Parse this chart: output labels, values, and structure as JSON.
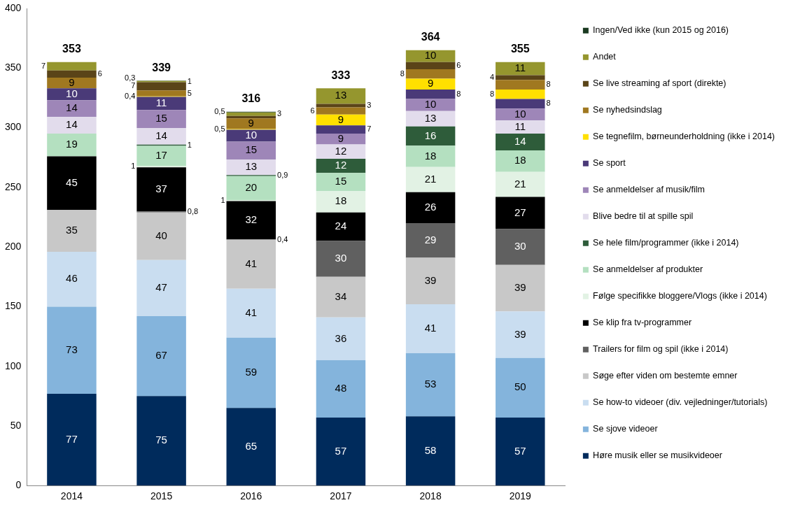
{
  "chart_data": {
    "type": "bar",
    "stacked": true,
    "categories": [
      "2014",
      "2015",
      "2016",
      "2017",
      "2018",
      "2019"
    ],
    "ylim": [
      0,
      400
    ],
    "yticks": [
      0,
      50,
      100,
      150,
      200,
      250,
      300,
      350,
      400
    ],
    "grid": false,
    "legend": "right",
    "totals": [
      "353",
      "339",
      "316",
      "333",
      "364",
      "355"
    ],
    "series": [
      {
        "name": "Høre musik eller se musikvideoer",
        "color": "#002b5c",
        "values": [
          77,
          75,
          65,
          57,
          58,
          57
        ],
        "value_labels": [
          "77",
          "75",
          "65",
          "57",
          "58",
          "57"
        ]
      },
      {
        "name": "Se sjove videoer",
        "color": "#84b4dc",
        "values": [
          73,
          67,
          59,
          48,
          53,
          50
        ],
        "value_labels": [
          "73",
          "67",
          "59",
          "48",
          "53",
          "50"
        ]
      },
      {
        "name": "Se how-to videoer (div. vejledninger/tutorials)",
        "color": "#c9ddf0",
        "values": [
          46,
          47,
          41,
          36,
          41,
          39
        ],
        "value_labels": [
          "46",
          "47",
          "41",
          "36",
          "41",
          "39"
        ]
      },
      {
        "name": "Søge efter viden om bestemte emner",
        "color": "#c8c8c8",
        "values": [
          35,
          40,
          41,
          34,
          39,
          39
        ],
        "value_labels": [
          "35",
          "40",
          "41",
          "34",
          "39",
          "39"
        ]
      },
      {
        "name": "Trailers for film og spil (ikke i 2014)",
        "color": "#606060",
        "values": [
          null,
          0.8,
          0.4,
          30,
          29,
          30
        ],
        "value_labels": [
          null,
          "0,8",
          "0,4",
          "30",
          "29",
          "30"
        ]
      },
      {
        "name": "Se klip fra tv-programmer",
        "color": "#000000",
        "values": [
          45,
          37,
          32,
          24,
          26,
          27
        ],
        "value_labels": [
          "45",
          "37",
          "32",
          "24",
          "26",
          "27"
        ]
      },
      {
        "name": "Følge specifikke bloggere/Vlogs (ikke i 2014)",
        "color": "#e2f2e4",
        "values": [
          null,
          1,
          1,
          18,
          21,
          21
        ],
        "value_labels": [
          null,
          "1",
          "1",
          "18",
          "21",
          "21"
        ]
      },
      {
        "name": "Se anmeldelser af produkter",
        "color": "#b4e0c0",
        "values": [
          19,
          17,
          20,
          15,
          18,
          18
        ],
        "value_labels": [
          "19",
          "17",
          "20",
          "15",
          "18",
          "18"
        ]
      },
      {
        "name": "Se hele film/programmer (ikke i 2014)",
        "color": "#2e5c3a",
        "values": [
          null,
          1,
          0.9,
          12,
          16,
          14
        ],
        "value_labels": [
          null,
          "1",
          "0,9",
          "12",
          "16",
          "14"
        ]
      },
      {
        "name": "Blive bedre til at spille spil",
        "color": "#e2dcec",
        "values": [
          14,
          14,
          13,
          12,
          13,
          11
        ],
        "value_labels": [
          "14",
          "14",
          "13",
          "12",
          "13",
          "11"
        ]
      },
      {
        "name": "Se anmeldelser af musik/film",
        "color": "#9e86b8",
        "values": [
          14,
          15,
          15,
          9,
          10,
          10
        ],
        "value_labels": [
          "14",
          "15",
          "15",
          "9",
          "10",
          "10"
        ]
      },
      {
        "name": "Se sport",
        "color": "#4a3a78",
        "values": [
          10,
          11,
          10,
          7,
          8,
          8
        ],
        "value_labels": [
          "10",
          "11",
          "10",
          "7",
          "8",
          "8"
        ]
      },
      {
        "name": "Se tegnefilm, børneunderholdning (ikke i 2014)",
        "color": "#ffe000",
        "values": [
          null,
          0.4,
          0.5,
          9,
          9,
          8
        ],
        "value_labels": [
          null,
          "0,4",
          "0,5",
          "9",
          "9",
          "8"
        ]
      },
      {
        "name": "Se nyhedsindslag",
        "color": "#a07820",
        "values": [
          9,
          5,
          9,
          6,
          8,
          8
        ],
        "value_labels": [
          "9",
          "5",
          "9",
          "6",
          "8",
          "8"
        ]
      },
      {
        "name": "Se live streaming af sport (direkte)",
        "color": "#5a4418",
        "values": [
          6,
          7,
          2,
          3,
          6,
          4
        ],
        "value_labels": [
          "6",
          "7",
          null,
          "3",
          "6",
          "4"
        ]
      },
      {
        "name": "Andet",
        "color": "#95962e",
        "values": [
          7,
          1,
          3,
          13,
          10,
          11
        ],
        "value_labels": [
          "7",
          "1",
          "3",
          "13",
          "10",
          "11"
        ]
      },
      {
        "name": "Ingen/Ved ikke (kun 2015 og 2016)",
        "color": "#1a3a20",
        "values": [
          null,
          0.3,
          0.5,
          null,
          null,
          null
        ],
        "value_labels": [
          null,
          "0,3",
          "0,5",
          null,
          null,
          null
        ]
      }
    ]
  }
}
